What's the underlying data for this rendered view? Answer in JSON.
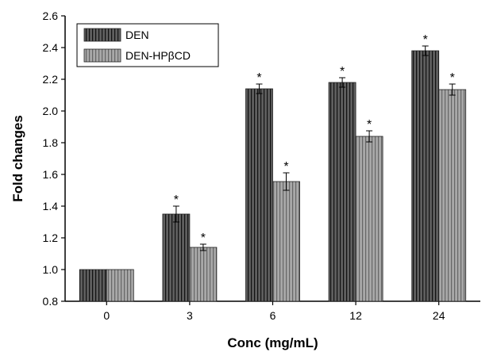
{
  "chart_data": {
    "type": "bar",
    "xlabel": "Conc (mg/mL)",
    "ylabel": "Fold changes",
    "categories": [
      "0",
      "3",
      "6",
      "12",
      "24"
    ],
    "ylim": [
      0.8,
      2.6
    ],
    "yticks": [
      "0.8",
      "1.0",
      "1.2",
      "1.4",
      "1.6",
      "1.8",
      "2.0",
      "2.2",
      "2.4",
      "2.6"
    ],
    "legend_position": "top-left",
    "grid": false,
    "series": [
      {
        "name": "DEN",
        "values": [
          1.0,
          1.35,
          2.14,
          2.18,
          2.38
        ],
        "errors": [
          0.0,
          0.05,
          0.03,
          0.03,
          0.03
        ],
        "significance": [
          "",
          "*",
          "*",
          "*",
          "*"
        ],
        "color": "#5f5f5f",
        "stripe_color": "#111111"
      },
      {
        "name": "DEN-HPβCD",
        "values": [
          1.0,
          1.14,
          1.555,
          1.84,
          2.135
        ],
        "errors": [
          0.0,
          0.02,
          0.055,
          0.035,
          0.035
        ],
        "significance": [
          "",
          "*",
          "*",
          "*",
          "*"
        ],
        "color": "#a8a8a8",
        "stripe_color": "#666666"
      }
    ]
  }
}
